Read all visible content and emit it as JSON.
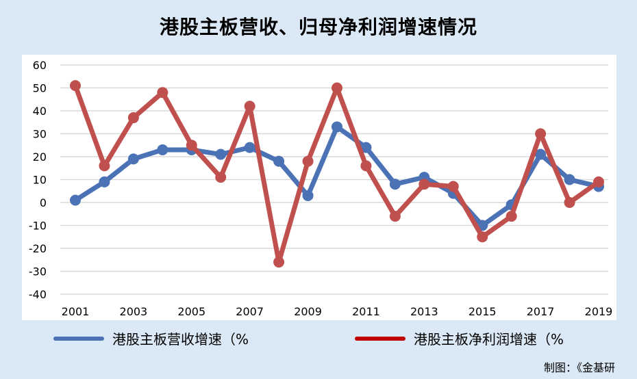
{
  "title": "港股主板营收、归母净利润增速情况",
  "source": "制图：《金基研",
  "legend": [
    {
      "label": "港股主板营收增速（%",
      "color": "#4a72b5"
    },
    {
      "label": "港股主板净利润增速（%",
      "color": "#c0504d"
    }
  ],
  "chart_data": {
    "type": "line",
    "title": "港股主板营收、归母净利润增速情况",
    "x": [
      2001,
      2002,
      2003,
      2004,
      2005,
      2006,
      2007,
      2008,
      2009,
      2010,
      2011,
      2012,
      2013,
      2014,
      2015,
      2016,
      2017,
      2018,
      2019
    ],
    "x_tick_labels": [
      "2001",
      "2003",
      "2005",
      "2007",
      "2009",
      "2011",
      "2013",
      "2015",
      "2017",
      "2019"
    ],
    "ylim": [
      -40,
      60
    ],
    "y_ticks": [
      60,
      50,
      40,
      30,
      20,
      10,
      0,
      -10,
      -20,
      -30,
      -40
    ],
    "grid": true,
    "legend_position": "bottom",
    "series": [
      {
        "name": "港股主板营收增速（%",
        "color": "#4a72b5",
        "values": [
          1,
          9,
          19,
          23,
          23,
          21,
          24,
          18,
          3,
          33,
          24,
          8,
          11,
          4,
          -10,
          -1,
          21,
          10,
          7
        ]
      },
      {
        "name": "港股主板净利润增速（%",
        "color": "#c0504d",
        "values": [
          51,
          16,
          37,
          48,
          25,
          11,
          42,
          -26,
          18,
          50,
          16,
          -6,
          8,
          7,
          -15,
          -6,
          30,
          0,
          9
        ]
      }
    ]
  }
}
